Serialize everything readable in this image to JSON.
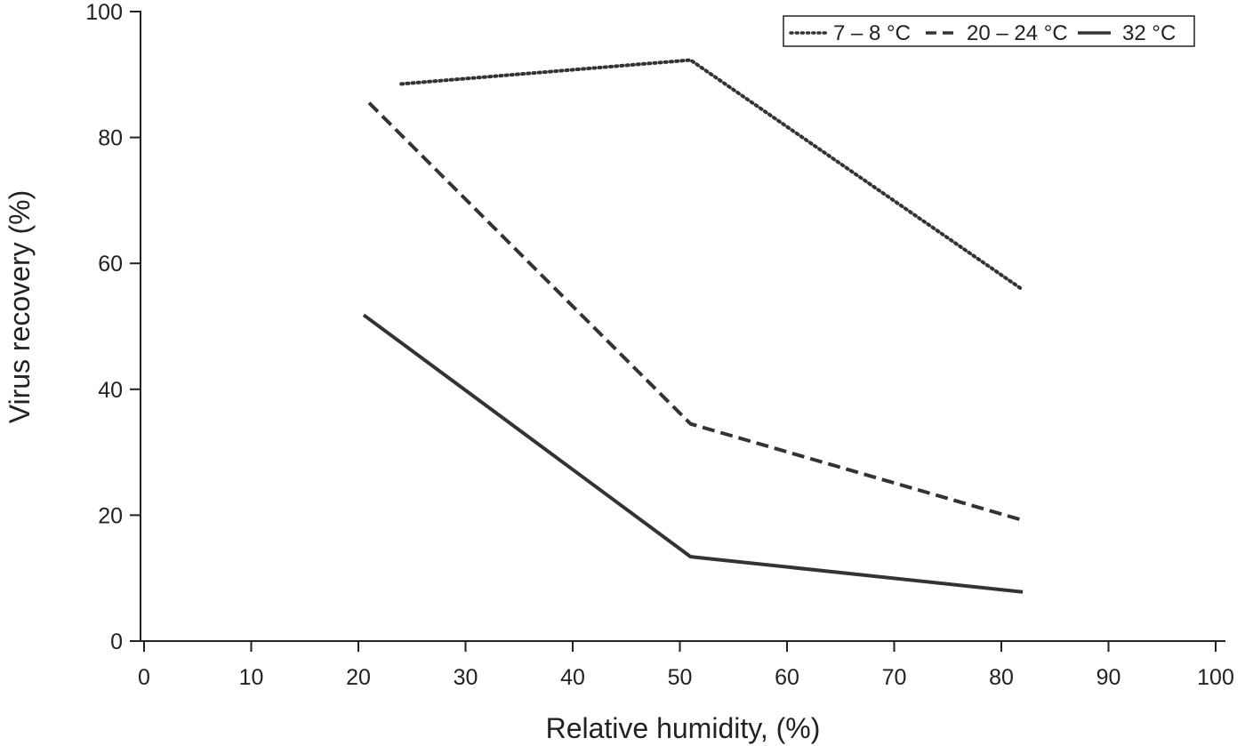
{
  "chart_data": {
    "type": "line",
    "xlabel": "Relative humidity, (%)",
    "ylabel": "Virus recovery (%)",
    "xlim": [
      0,
      100
    ],
    "ylim": [
      0,
      100
    ],
    "x_ticks": [
      "0",
      "10",
      "20",
      "30",
      "40",
      "50",
      "60",
      "70",
      "80",
      "90",
      "100"
    ],
    "y_ticks": [
      "0",
      "20",
      "40",
      "60",
      "80",
      "100"
    ],
    "grid": false,
    "legend_position": "top-right",
    "series": [
      {
        "name": "7 – 8 °C",
        "style": "dotted",
        "color": "#333333",
        "points": [
          [
            24,
            88.5
          ],
          [
            51,
            92.3
          ],
          [
            82,
            55.8
          ]
        ]
      },
      {
        "name": "20 – 24 °C",
        "style": "dashed",
        "color": "#333333",
        "points": [
          [
            21,
            85.5
          ],
          [
            51,
            34.5
          ],
          [
            82,
            19.2
          ]
        ]
      },
      {
        "name": "32 °C",
        "style": "solid",
        "color": "#333333",
        "points": [
          [
            20.5,
            51.8
          ],
          [
            51,
            13.4
          ],
          [
            82,
            7.8
          ]
        ]
      }
    ]
  }
}
